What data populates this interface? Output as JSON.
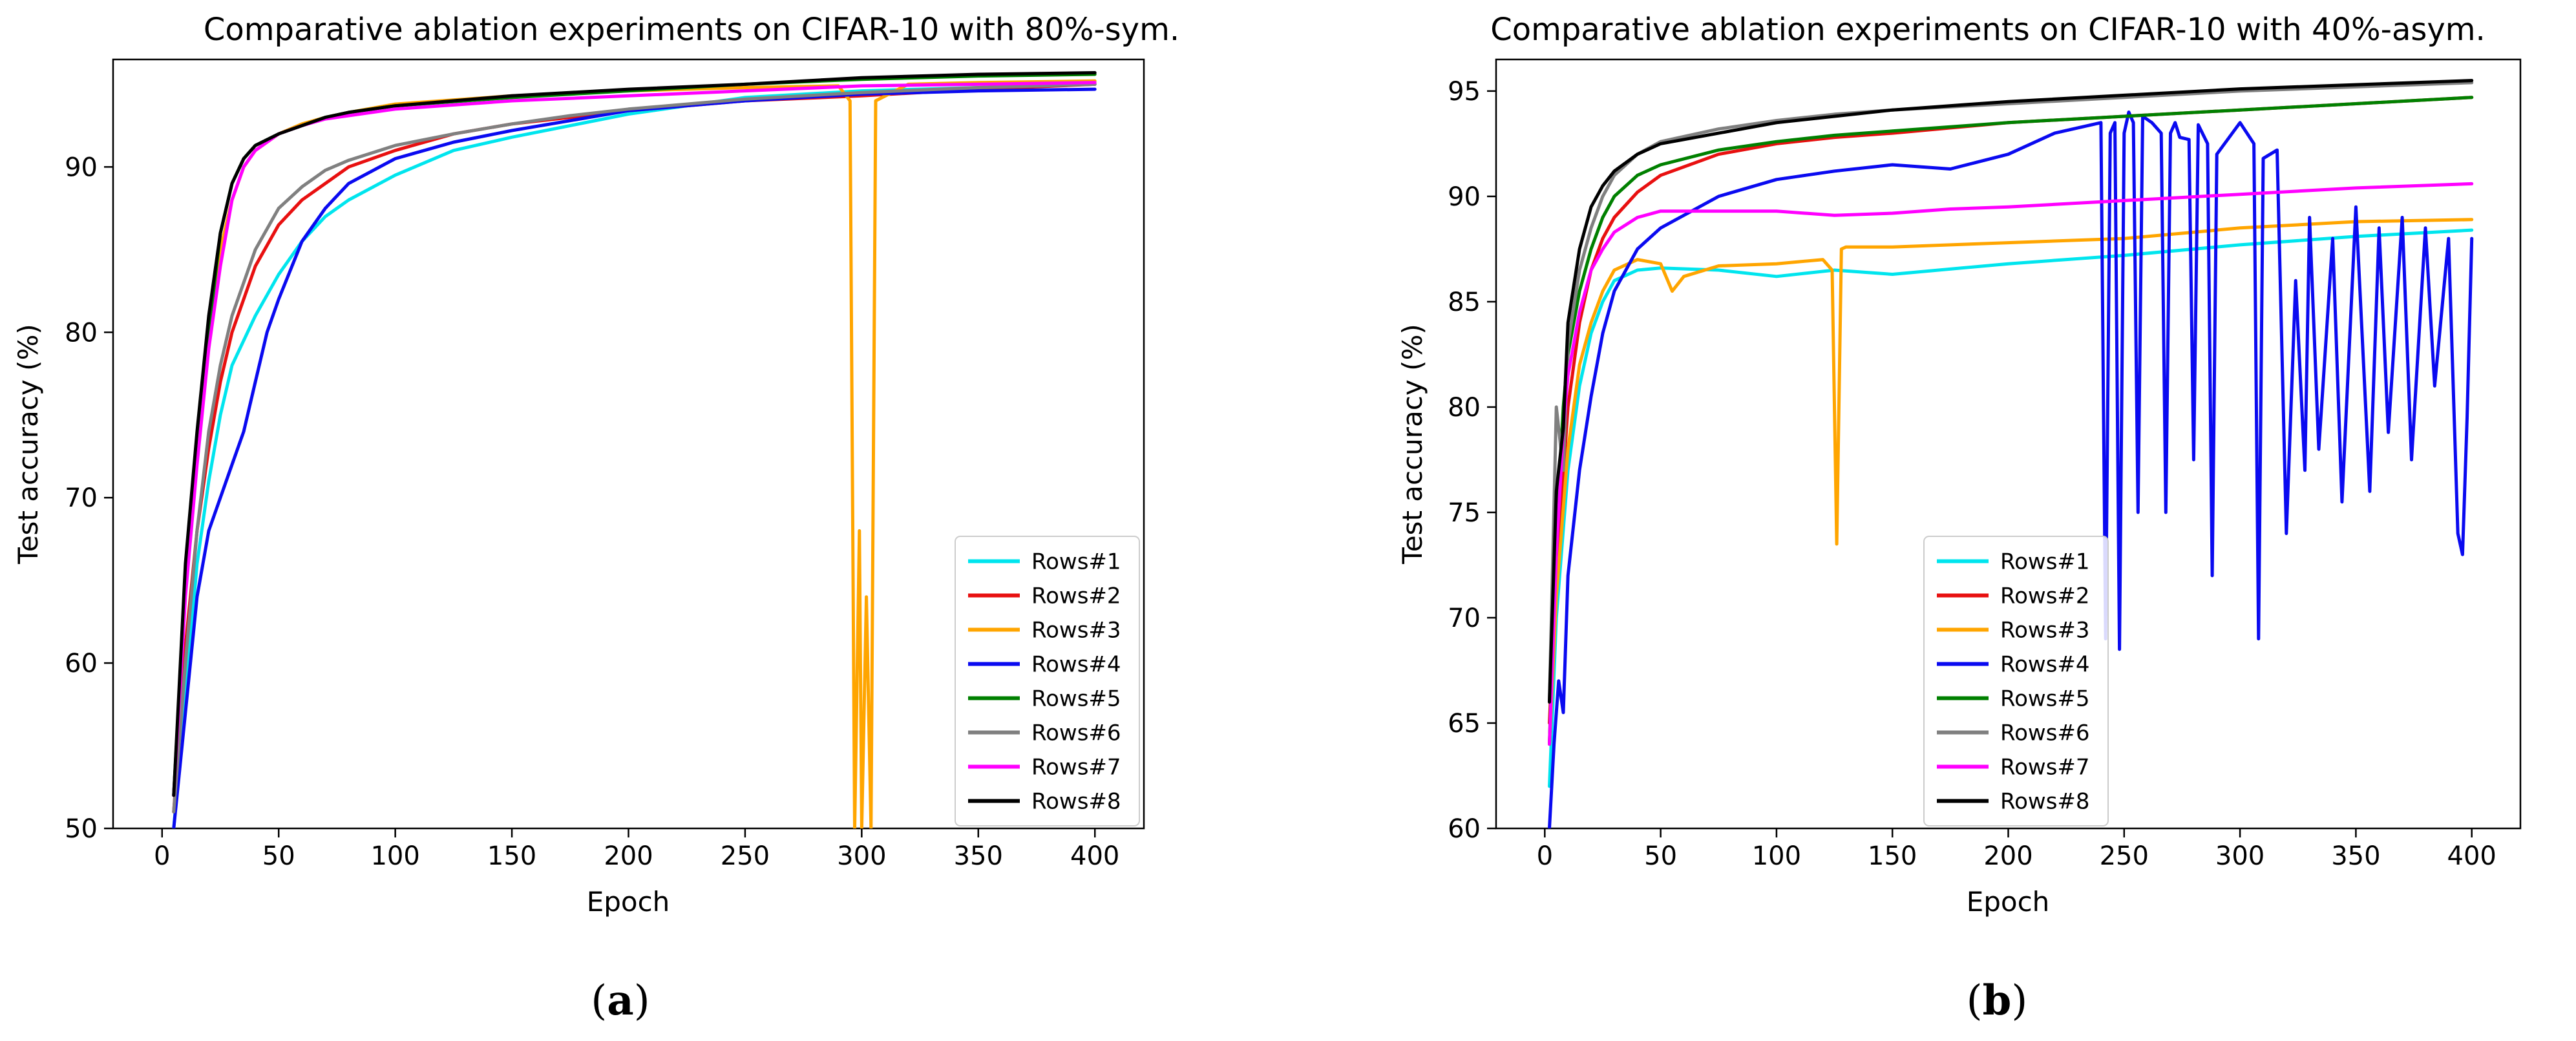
{
  "chart_data": [
    {
      "type": "line",
      "title": "Comparative ablation experiments on CIFAR-10 with 80%-sym.",
      "xlabel": "Epoch",
      "ylabel": "Test accuracy (%)",
      "xlim": [
        -21,
        421
      ],
      "ylim": [
        50,
        96.5
      ],
      "xticks": [
        0,
        50,
        100,
        150,
        200,
        250,
        300,
        350,
        400
      ],
      "yticks": [
        50,
        60,
        70,
        80,
        90
      ],
      "legend_position": "lower right",
      "caption": "(a)",
      "caption_letter": "a",
      "series": [
        {
          "name": "Rows#1",
          "color": "#00e5ee",
          "x": [
            5,
            10,
            15,
            20,
            25,
            30,
            40,
            50,
            60,
            70,
            80,
            100,
            125,
            150,
            175,
            200,
            250,
            300,
            350,
            400
          ],
          "y": [
            50,
            58,
            66,
            71,
            75,
            78,
            81,
            83.5,
            85.5,
            87,
            88,
            89.5,
            91,
            91.8,
            92.5,
            93.2,
            94.2,
            94.6,
            94.8,
            95
          ]
        },
        {
          "name": "Rows#2",
          "color": "#e81010",
          "x": [
            5,
            10,
            15,
            20,
            25,
            30,
            40,
            50,
            60,
            70,
            80,
            100,
            125,
            150,
            175,
            200,
            250,
            300,
            350,
            400
          ],
          "y": [
            51,
            61,
            68,
            73,
            77,
            80,
            84,
            86.5,
            88,
            89,
            90,
            91,
            92,
            92.6,
            93,
            93.4,
            94,
            94.3,
            94.7,
            95
          ]
        },
        {
          "name": "Rows#3",
          "color": "#ffa500",
          "x": [
            5,
            10,
            15,
            20,
            25,
            30,
            35,
            40,
            50,
            60,
            70,
            80,
            100,
            150,
            200,
            250,
            290,
            295,
            297,
            299,
            300,
            302,
            304,
            306,
            320,
            350,
            400
          ],
          "y": [
            52,
            65,
            73,
            80,
            85,
            88,
            90,
            91,
            92,
            92.6,
            93,
            93.3,
            93.8,
            94.3,
            94.6,
            94.8,
            94.9,
            94,
            50,
            68,
            50,
            64,
            50,
            94,
            95,
            95.1,
            95.2
          ]
        },
        {
          "name": "Rows#4",
          "color": "#0a0af0",
          "x": [
            5,
            10,
            15,
            20,
            25,
            30,
            35,
            40,
            45,
            50,
            60,
            70,
            80,
            100,
            125,
            150,
            175,
            200,
            250,
            300,
            350,
            400
          ],
          "y": [
            50,
            57,
            64,
            68,
            70,
            72,
            74,
            77,
            80,
            82,
            85.5,
            87.5,
            89,
            90.5,
            91.5,
            92.2,
            92.8,
            93.4,
            94,
            94.4,
            94.6,
            94.7
          ]
        },
        {
          "name": "Rows#5",
          "color": "#008000",
          "x": [
            5,
            10,
            15,
            20,
            25,
            30,
            35,
            40,
            50,
            60,
            70,
            80,
            100,
            150,
            200,
            250,
            300,
            350,
            400
          ],
          "y": [
            52,
            65,
            73,
            80,
            86,
            89,
            90.5,
            91.3,
            92,
            92.5,
            93,
            93.3,
            93.7,
            94.2,
            94.6,
            95,
            95.3,
            95.5,
            95.6
          ]
        },
        {
          "name": "Rows#6",
          "color": "#808080",
          "x": [
            5,
            10,
            15,
            20,
            25,
            30,
            40,
            50,
            60,
            70,
            80,
            100,
            125,
            150,
            175,
            200,
            250,
            300,
            350,
            400
          ],
          "y": [
            51,
            60,
            68,
            74,
            78,
            81,
            85,
            87.5,
            88.8,
            89.8,
            90.4,
            91.3,
            92,
            92.6,
            93.1,
            93.5,
            94.1,
            94.5,
            94.8,
            95
          ]
        },
        {
          "name": "Rows#7",
          "color": "#ff00ff",
          "x": [
            5,
            10,
            15,
            20,
            25,
            30,
            35,
            40,
            50,
            60,
            70,
            80,
            100,
            150,
            200,
            250,
            300,
            350,
            400
          ],
          "y": [
            52,
            64,
            72,
            79,
            84,
            88,
            90,
            91,
            92,
            92.5,
            92.9,
            93.1,
            93.5,
            94,
            94.3,
            94.6,
            94.9,
            95,
            95.1
          ]
        },
        {
          "name": "Rows#8",
          "color": "#000000",
          "x": [
            5,
            10,
            15,
            20,
            25,
            30,
            35,
            40,
            50,
            60,
            70,
            80,
            100,
            150,
            200,
            250,
            300,
            350,
            400
          ],
          "y": [
            52,
            66,
            74,
            81,
            86,
            89,
            90.5,
            91.3,
            92,
            92.5,
            93,
            93.3,
            93.7,
            94.3,
            94.7,
            95,
            95.4,
            95.6,
            95.7
          ]
        }
      ]
    },
    {
      "type": "line",
      "title": "Comparative ablation experiments on CIFAR-10 with 40%-asym.",
      "xlabel": "Epoch",
      "ylabel": "Test accuracy (%)",
      "xlim": [
        -21,
        421
      ],
      "ylim": [
        60,
        96.5
      ],
      "xticks": [
        0,
        50,
        100,
        150,
        200,
        250,
        300,
        350,
        400
      ],
      "yticks": [
        60,
        65,
        70,
        75,
        80,
        85,
        90,
        95
      ],
      "legend_position": "lower center",
      "caption": "(b)",
      "caption_letter": "b",
      "series": [
        {
          "name": "Rows#1",
          "color": "#00e5ee",
          "x": [
            2,
            5,
            10,
            15,
            20,
            25,
            30,
            40,
            50,
            75,
            100,
            125,
            150,
            200,
            250,
            300,
            350,
            400
          ],
          "y": [
            62,
            70,
            77,
            81,
            83.5,
            85,
            86,
            86.5,
            86.6,
            86.5,
            86.2,
            86.5,
            86.3,
            86.8,
            87.2,
            87.7,
            88.1,
            88.4
          ]
        },
        {
          "name": "Rows#2",
          "color": "#e81010",
          "x": [
            2,
            5,
            10,
            15,
            20,
            25,
            30,
            40,
            50,
            75,
            100,
            125,
            150,
            200,
            250,
            300,
            350,
            400
          ],
          "y": [
            65,
            72,
            80,
            84,
            86.5,
            88,
            89,
            90.2,
            91,
            92,
            92.5,
            92.8,
            93,
            93.5,
            93.8,
            94.1,
            94.4,
            94.7
          ]
        },
        {
          "name": "Rows#3",
          "color": "#ffa500",
          "x": [
            2,
            5,
            10,
            15,
            20,
            25,
            30,
            40,
            50,
            55,
            60,
            75,
            100,
            120,
            124,
            126,
            128,
            130,
            150,
            200,
            250,
            300,
            350,
            400
          ],
          "y": [
            64,
            71,
            78,
            82,
            84,
            85.5,
            86.5,
            87,
            86.8,
            85.5,
            86.2,
            86.7,
            86.8,
            87,
            86.5,
            73.5,
            87.5,
            87.6,
            87.6,
            87.8,
            88,
            88.5,
            88.8,
            88.9
          ]
        },
        {
          "name": "Rows#4",
          "color": "#0a0af0",
          "x": [
            2,
            4,
            6,
            8,
            10,
            15,
            20,
            25,
            30,
            40,
            50,
            75,
            100,
            125,
            150,
            175,
            200,
            220,
            240,
            242,
            244,
            246,
            248,
            250,
            252,
            254,
            256,
            258,
            262,
            266,
            268,
            270,
            272,
            274,
            278,
            280,
            282,
            286,
            288,
            290,
            300,
            306,
            308,
            310,
            316,
            320,
            324,
            328,
            330,
            334,
            340,
            344,
            350,
            356,
            360,
            364,
            370,
            374,
            380,
            384,
            390,
            394,
            396,
            398,
            400
          ],
          "y": [
            60,
            64,
            67,
            65.5,
            72,
            77,
            80.5,
            83.5,
            85.5,
            87.5,
            88.5,
            90,
            90.8,
            91.2,
            91.5,
            91.3,
            92,
            93,
            93.5,
            69,
            93,
            93.5,
            68.5,
            93,
            94,
            93.5,
            75,
            93.8,
            93.5,
            93,
            75,
            93,
            93.5,
            92.8,
            92.7,
            77.5,
            93.4,
            92.5,
            72,
            92,
            93.5,
            92.5,
            69,
            91.8,
            92.2,
            74,
            86,
            77,
            89,
            78,
            88,
            75.5,
            89.5,
            76,
            88.5,
            78.8,
            89,
            77.5,
            88.5,
            81,
            88,
            74,
            73,
            79.5,
            88
          ]
        },
        {
          "name": "Rows#5",
          "color": "#008000",
          "x": [
            2,
            5,
            8,
            10,
            15,
            20,
            25,
            30,
            40,
            50,
            75,
            100,
            125,
            150,
            200,
            250,
            300,
            350,
            400
          ],
          "y": [
            64,
            74,
            80,
            82.5,
            85.5,
            87.5,
            89,
            90,
            91,
            91.5,
            92.2,
            92.6,
            92.9,
            93.1,
            93.5,
            93.8,
            94.1,
            94.4,
            94.7
          ]
        },
        {
          "name": "Rows#6",
          "color": "#808080",
          "x": [
            2,
            5,
            8,
            10,
            15,
            20,
            25,
            30,
            40,
            50,
            75,
            100,
            125,
            150,
            200,
            250,
            300,
            350,
            400
          ],
          "y": [
            66,
            80,
            77,
            83,
            86.5,
            88.5,
            90,
            91,
            92,
            92.6,
            93.2,
            93.6,
            93.9,
            94.1,
            94.4,
            94.7,
            95,
            95.2,
            95.4
          ]
        },
        {
          "name": "Rows#7",
          "color": "#ff00ff",
          "x": [
            2,
            5,
            8,
            10,
            15,
            20,
            25,
            30,
            40,
            50,
            75,
            100,
            125,
            150,
            175,
            200,
            250,
            300,
            350,
            400
          ],
          "y": [
            64,
            73,
            79,
            81.5,
            84.5,
            86.5,
            87.5,
            88.3,
            89,
            89.3,
            89.3,
            89.3,
            89.1,
            89.2,
            89.4,
            89.5,
            89.8,
            90.1,
            90.4,
            90.6
          ]
        },
        {
          "name": "Rows#8",
          "color": "#000000",
          "x": [
            2,
            5,
            8,
            10,
            15,
            20,
            25,
            30,
            40,
            50,
            75,
            100,
            125,
            150,
            200,
            250,
            300,
            350,
            400
          ],
          "y": [
            66,
            76,
            79,
            84,
            87.5,
            89.5,
            90.5,
            91.2,
            92,
            92.5,
            93,
            93.5,
            93.8,
            94.1,
            94.5,
            94.8,
            95.1,
            95.3,
            95.5
          ]
        }
      ]
    }
  ]
}
